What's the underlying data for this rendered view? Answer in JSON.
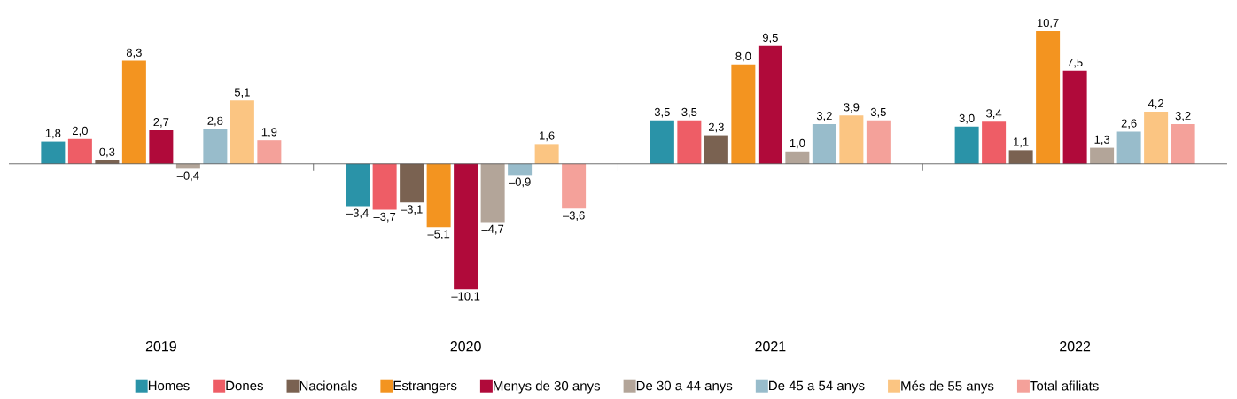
{
  "chart_data": {
    "type": "bar",
    "categories": [
      "2019",
      "2020",
      "2021",
      "2022"
    ],
    "series": [
      {
        "name": "Homes",
        "color": "#2a93a8",
        "values": [
          1.8,
          -3.4,
          3.5,
          3.0
        ],
        "value_labels": [
          "1,8",
          "–3,4",
          "3,5",
          "3,0"
        ]
      },
      {
        "name": "Dones",
        "color": "#ee5d66",
        "values": [
          2.0,
          -3.7,
          3.5,
          3.4
        ],
        "value_labels": [
          "2,0",
          "–3,7",
          "3,5",
          "3,4"
        ]
      },
      {
        "name": "Nacionals",
        "color": "#7a6251",
        "values": [
          0.3,
          -3.1,
          2.3,
          1.1
        ],
        "value_labels": [
          "0,3",
          "–3,1",
          "2,3",
          "1,1"
        ]
      },
      {
        "name": "Estrangers",
        "color": "#f39420",
        "values": [
          8.3,
          -5.1,
          8.0,
          10.7
        ],
        "value_labels": [
          "8,3",
          "–5,1",
          "8,0",
          "10,7"
        ]
      },
      {
        "name": "Menys de 30 anys",
        "color": "#b00a3a",
        "values": [
          2.7,
          -10.1,
          9.5,
          7.5
        ],
        "value_labels": [
          "2,7",
          "–10,1",
          "9,5",
          "7,5"
        ]
      },
      {
        "name": "De 30 a 44 anys",
        "color": "#b3a599",
        "values": [
          -0.4,
          -4.7,
          1.0,
          1.3
        ],
        "value_labels": [
          "–0,4",
          "–4,7",
          "1,0",
          "1,3"
        ]
      },
      {
        "name": "De 45 a 54 anys",
        "color": "#98bccb",
        "values": [
          2.8,
          -0.9,
          3.2,
          2.6
        ],
        "value_labels": [
          "2,8",
          "–0,9",
          "3,2",
          "2,6"
        ]
      },
      {
        "name": "Més de 55 anys",
        "color": "#fbc582",
        "values": [
          5.1,
          1.6,
          3.9,
          4.2
        ],
        "value_labels": [
          "5,1",
          "1,6",
          "3,9",
          "4,2"
        ]
      },
      {
        "name": "Total afiliats",
        "color": "#f4a19a",
        "values": [
          1.9,
          -3.6,
          3.5,
          3.2
        ],
        "value_labels": [
          "1,9",
          "–3,6",
          "3,5",
          "3,2"
        ]
      }
    ],
    "legend": "bottom"
  }
}
